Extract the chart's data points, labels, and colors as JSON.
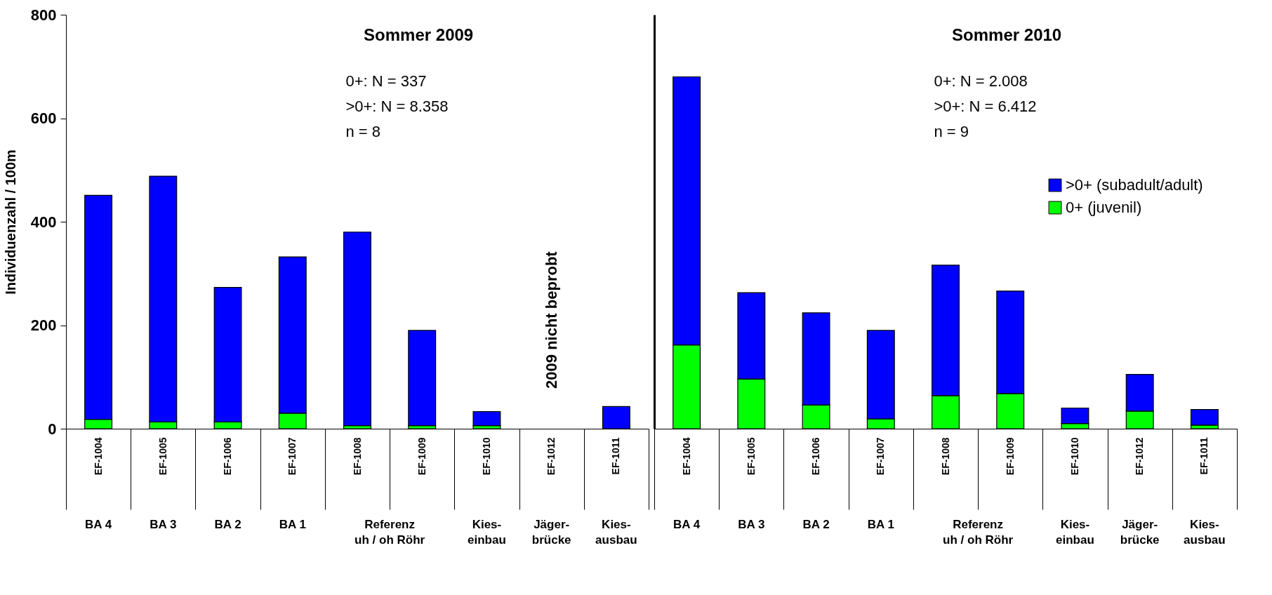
{
  "chart_data": [
    {
      "type": "bar",
      "title": "Sommer 2009",
      "ylabel": "Individuenzahl / 100m",
      "stacked": true,
      "ylim": [
        0,
        800
      ],
      "yticks": [
        0,
        200,
        400,
        600,
        800
      ],
      "categories": [
        "EF-1004",
        "EF-1005",
        "EF-1006",
        "EF-1007",
        "EF-1008",
        "EF-1009",
        "EF-1010",
        "EF-1012",
        "EF-1011"
      ],
      "series": [
        {
          "color": "#00ff00",
          "values": [
            18,
            13,
            13,
            30,
            6,
            6,
            6,
            null,
            null
          ]
        },
        {
          "color": "#0000ff",
          "values": [
            433,
            475,
            260,
            302,
            374,
            184,
            27,
            null,
            43
          ]
        }
      ],
      "annotations": [
        "0+:   N =     337",
        ">0+: N = 8.358",
        "n = 8",
        "2009 nicht beprobt",
        "BA 4",
        "BA 3",
        "BA 2",
        "BA 1",
        "Referenz\nuh / oh Röhr",
        "Kies-\neinbau",
        "Jäger-\nbrücke",
        "Kies-\nausbau"
      ]
    },
    {
      "type": "bar",
      "title": "Sommer 2010",
      "stacked": true,
      "ylim": [
        0,
        800
      ],
      "yticks": [
        0,
        200,
        400,
        600,
        800
      ],
      "tick_labels": "x",
      "legend": "right",
      "categories": [
        "EF-1004",
        "EF-1005",
        "EF-1006",
        "EF-1007",
        "EF-1008",
        "EF-1009",
        "EF-1010",
        "EF-1012",
        "EF-1011"
      ],
      "series": [
        {
          "name": "0+ (juvenil)",
          "color": "#00ff00",
          "values": [
            162,
            96,
            46,
            19,
            64,
            68,
            10,
            34,
            7
          ]
        },
        {
          "name": ">0+ (subadult/adult)",
          "color": "#0000ff",
          "values": [
            518,
            167,
            178,
            171,
            252,
            198,
            30,
            71,
            30
          ]
        }
      ],
      "annotations": [
        "0+:   N = 2.008",
        ">0+: N = 6.412",
        "n = 9",
        "BA 4",
        "BA 3",
        "BA 2",
        "BA 1",
        "Referenz\nuh / oh Röhr",
        "Kies-\neinbau",
        "Jäger-\nbrücke",
        "Kies-\nausbau"
      ]
    }
  ]
}
